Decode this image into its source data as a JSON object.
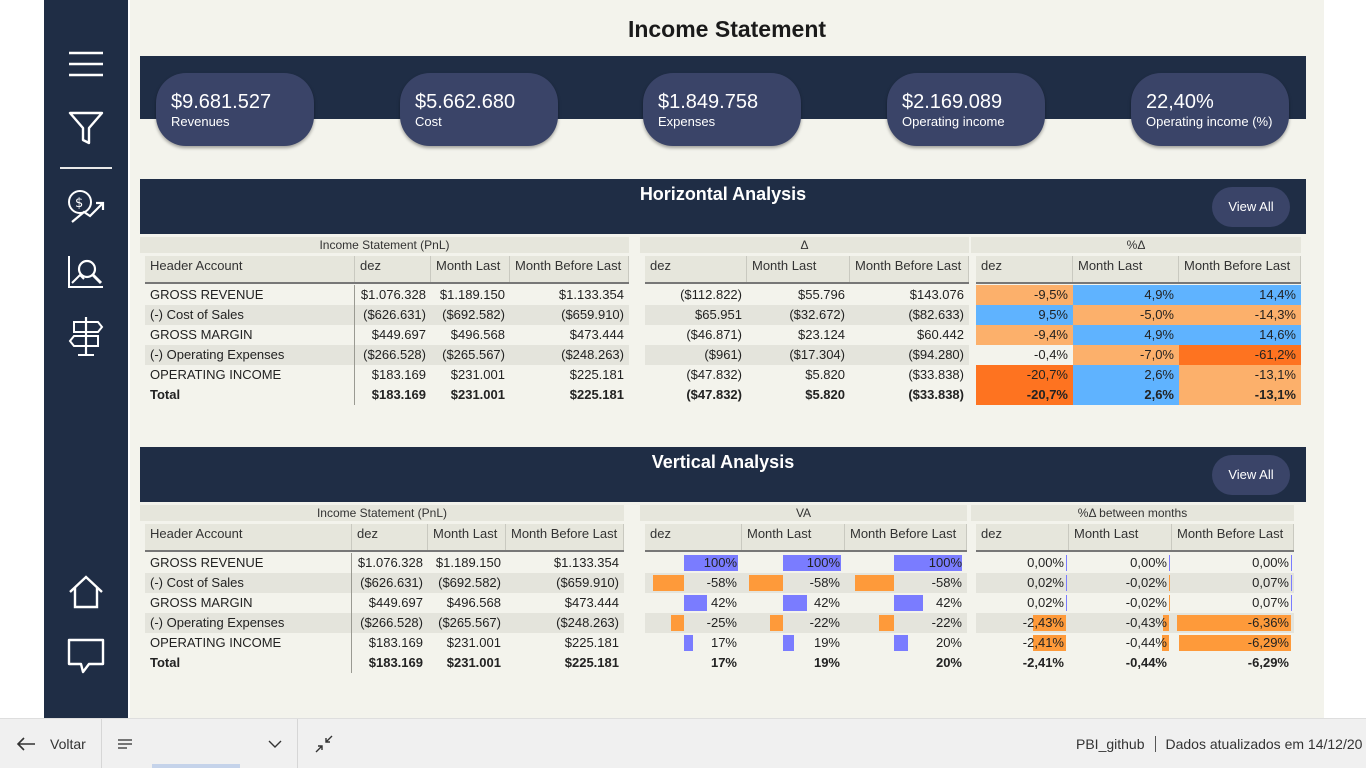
{
  "page": {
    "title": "Income Statement"
  },
  "sidebar": {
    "icons": [
      "hamburger-icon",
      "filter-icon",
      "money-chart-icon",
      "magnify-chart-icon",
      "signpost-icon",
      "home-icon",
      "comment-icon"
    ]
  },
  "kpis": [
    {
      "value": "$9.681.527",
      "label": "Revenues"
    },
    {
      "value": "$5.662.680",
      "label": "Cost"
    },
    {
      "value": "$1.849.758",
      "label": "Expenses"
    },
    {
      "value": "$2.169.089",
      "label": "Operating income"
    },
    {
      "value": "22,40%",
      "label": "Operating income (%)"
    }
  ],
  "horizontal": {
    "title": "Horizontal Analysis",
    "view_all": "View All",
    "groups": {
      "pnl": "Income Statement (PnL)",
      "delta": "Δ",
      "pct": "%Δ"
    },
    "headers": {
      "account": "Header Account",
      "dez": "dez",
      "last": "Month Last",
      "before": "Month Before Last"
    },
    "rows": [
      {
        "account": "GROSS REVENUE",
        "dez": "$1.076.328",
        "last": "$1.189.150",
        "before": "$1.133.354",
        "d_dez": "($112.822)",
        "d_last": "$55.796",
        "d_before": "$143.076",
        "p_dez": "-9,5%",
        "p_last": "4,9%",
        "p_before": "14,4%"
      },
      {
        "account": "(-) Cost of Sales",
        "dez": "($626.631)",
        "last": "($692.582)",
        "before": "($659.910)",
        "d_dez": "$65.951",
        "d_last": "($32.672)",
        "d_before": "($82.633)",
        "p_dez": "9,5%",
        "p_last": "-5,0%",
        "p_before": "-14,3%"
      },
      {
        "account": "GROSS MARGIN",
        "dez": "$449.697",
        "last": "$496.568",
        "before": "$473.444",
        "d_dez": "($46.871)",
        "d_last": "$23.124",
        "d_before": "$60.442",
        "p_dez": "-9,4%",
        "p_last": "4,9%",
        "p_before": "14,6%"
      },
      {
        "account": "(-) Operating Expenses",
        "dez": "($266.528)",
        "last": "($265.567)",
        "before": "($248.263)",
        "d_dez": "($961)",
        "d_last": "($17.304)",
        "d_before": "($94.280)",
        "p_dez": "-0,4%",
        "p_last": "-7,0%",
        "p_before": "-61,2%"
      },
      {
        "account": "OPERATING INCOME",
        "dez": "$183.169",
        "last": "$231.001",
        "before": "$225.181",
        "d_dez": "($47.832)",
        "d_last": "$5.820",
        "d_before": "($33.838)",
        "p_dez": "-20,7%",
        "p_last": "2,6%",
        "p_before": "-13,1%"
      },
      {
        "account": "Total",
        "dez": "$183.169",
        "last": "$231.001",
        "before": "$225.181",
        "d_dez": "($47.832)",
        "d_last": "$5.820",
        "d_before": "($33.838)",
        "p_dez": "-20,7%",
        "p_last": "2,6%",
        "p_before": "-13,1%"
      }
    ],
    "pct_colors": [
      [
        "#fcb06b",
        "#5fb3ff",
        "#5fb3ff"
      ],
      [
        "#5fb3ff",
        "#fcb06b",
        "#fcb06b"
      ],
      [
        "#fcb06b",
        "#5fb3ff",
        "#5fb3ff"
      ],
      [
        "#f3f3ec",
        "#fcb06b",
        "#fe7320"
      ],
      [
        "#fe7320",
        "#5fb3ff",
        "#fcb06b"
      ],
      [
        "#fe7320",
        "#5fb3ff",
        "#fcb06b"
      ]
    ]
  },
  "vertical": {
    "title": "Vertical Analysis",
    "view_all": "View All",
    "groups": {
      "pnl": "Income Statement (PnL)",
      "va": "VA",
      "pct": "%Δ between months"
    },
    "headers": {
      "account": "Header Account",
      "dez": "dez",
      "last": "Month Last",
      "before": "Month Before Last"
    },
    "rows": [
      {
        "account": "GROSS REVENUE",
        "dez": "$1.076.328",
        "last": "$1.189.150",
        "before": "$1.133.354",
        "va_dez": "100%",
        "va_last": "100%",
        "va_before": "100%",
        "m_dez": "0,00%",
        "m_last": "0,00%",
        "m_before": "0,00%"
      },
      {
        "account": "(-) Cost of Sales",
        "dez": "($626.631)",
        "last": "($692.582)",
        "before": "($659.910)",
        "va_dez": "-58%",
        "va_last": "-58%",
        "va_before": "-58%",
        "m_dez": "0,02%",
        "m_last": "-0,02%",
        "m_before": "0,07%"
      },
      {
        "account": "GROSS MARGIN",
        "dez": "$449.697",
        "last": "$496.568",
        "before": "$473.444",
        "va_dez": "42%",
        "va_last": "42%",
        "va_before": "42%",
        "m_dez": "0,02%",
        "m_last": "-0,02%",
        "m_before": "0,07%"
      },
      {
        "account": "(-) Operating Expenses",
        "dez": "($266.528)",
        "last": "($265.567)",
        "before": "($248.263)",
        "va_dez": "-25%",
        "va_last": "-22%",
        "va_before": "-22%",
        "m_dez": "-2,43%",
        "m_last": "-0,43%",
        "m_before": "-6,36%"
      },
      {
        "account": "OPERATING INCOME",
        "dez": "$183.169",
        "last": "$231.001",
        "before": "$225.181",
        "va_dez": "17%",
        "va_last": "19%",
        "va_before": "20%",
        "m_dez": "-2,41%",
        "m_last": "-0,44%",
        "m_before": "-6,29%"
      },
      {
        "account": "Total",
        "dez": "$183.169",
        "last": "$231.001",
        "before": "$225.181",
        "va_dez": "17%",
        "va_last": "19%",
        "va_before": "20%",
        "m_dez": "-2,41%",
        "m_last": "-0,44%",
        "m_before": "-6,29%"
      }
    ],
    "va_values": [
      [
        1.0,
        1.0,
        1.0
      ],
      [
        -0.58,
        -0.58,
        -0.58
      ],
      [
        0.42,
        0.42,
        0.42
      ],
      [
        -0.25,
        -0.22,
        -0.22
      ],
      [
        0.17,
        0.19,
        0.2
      ]
    ],
    "m_values": [
      [
        0.0,
        0.0,
        0.0
      ],
      [
        0.02,
        -0.02,
        0.07
      ],
      [
        0.02,
        -0.02,
        0.07
      ],
      [
        -2.43,
        -0.43,
        -6.36
      ],
      [
        -2.41,
        -0.44,
        -6.29
      ]
    ],
    "bar_colors": {
      "positive": "#7a7cff",
      "negative": "#fe9a3a"
    }
  },
  "bottombar": {
    "back_label": "Voltar",
    "workspace": "PBI_github",
    "updated": "Dados atualizados em 14/12/20"
  }
}
